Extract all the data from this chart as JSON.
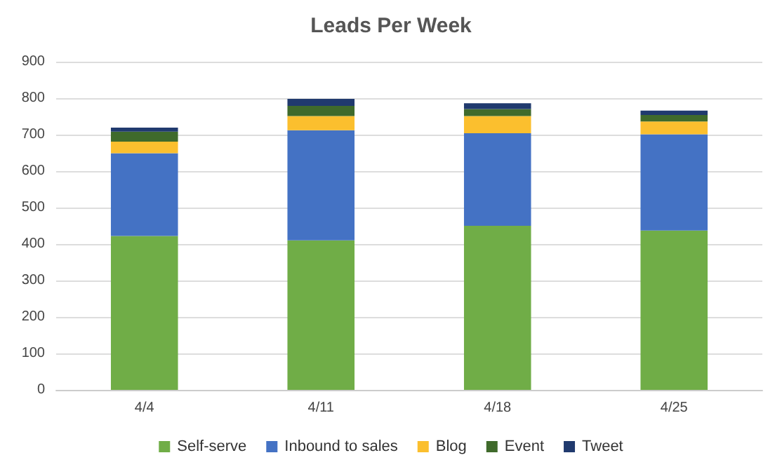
{
  "chart_data": {
    "type": "bar",
    "title": "Leads Per Week",
    "stacked": true,
    "categories": [
      "4/4",
      "4/11",
      "4/18",
      "4/25"
    ],
    "series": [
      {
        "name": "Self-serve",
        "color": "#70ad47",
        "values": [
          422,
          410,
          450,
          437
        ]
      },
      {
        "name": "Inbound to sales",
        "color": "#4472c4",
        "values": [
          227,
          302,
          254,
          264
        ]
      },
      {
        "name": "Blog",
        "color": "#fbbf2e",
        "values": [
          32,
          39,
          47,
          35
        ]
      },
      {
        "name": "Event",
        "color": "#3f6a2b",
        "values": [
          27,
          28,
          19,
          18
        ]
      },
      {
        "name": "Tweet",
        "color": "#203a6e",
        "values": [
          11,
          19,
          16,
          12
        ]
      }
    ],
    "ylim": [
      0,
      900
    ],
    "yticks": [
      0,
      100,
      200,
      300,
      400,
      500,
      600,
      700,
      800,
      900
    ],
    "grid": "y",
    "legend": "bottom"
  }
}
